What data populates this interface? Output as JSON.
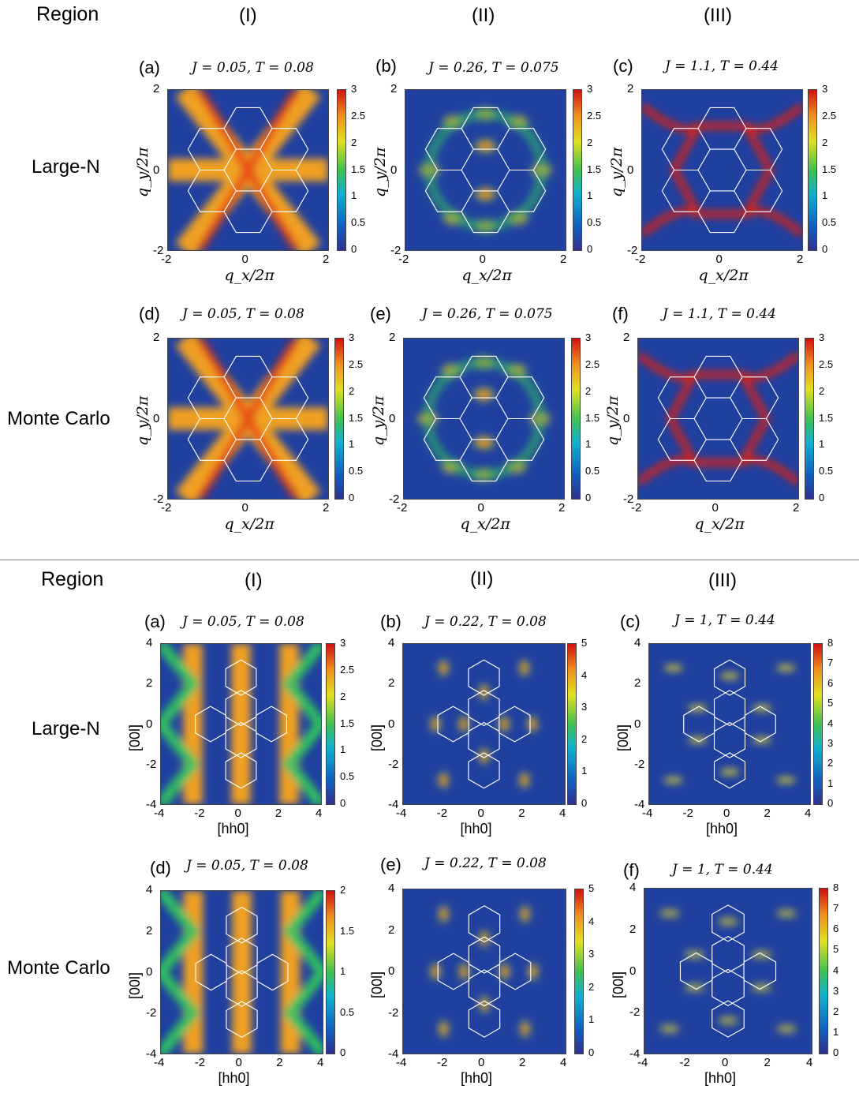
{
  "top": {
    "region_label": "Region",
    "columns": [
      "(I)",
      "(II)",
      "(III)"
    ],
    "rows": [
      "Large-N",
      "Monte Carlo"
    ],
    "panels": [
      {
        "label": "(a)",
        "title": "J = 0.05, T = 0.08",
        "cb_ticks": [
          "3",
          "2.5",
          "2",
          "1.5",
          "1",
          "0.5",
          "0"
        ]
      },
      {
        "label": "(b)",
        "title": "J = 0.26, T = 0.075",
        "cb_ticks": [
          "3",
          "2.5",
          "2",
          "1.5",
          "1",
          "0.5",
          "0"
        ]
      },
      {
        "label": "(c)",
        "title": "J = 1.1, T = 0.44",
        "cb_ticks": [
          "3",
          "2.5",
          "2",
          "1.5",
          "1",
          "0.5",
          "0"
        ]
      },
      {
        "label": "(d)",
        "title": "J = 0.05, T = 0.08",
        "cb_ticks": [
          "3",
          "2.5",
          "2",
          "1.5",
          "1",
          "0.5",
          "0"
        ]
      },
      {
        "label": "(e)",
        "title": "J = 0.26, T = 0.075",
        "cb_ticks": [
          "3",
          "2.5",
          "2",
          "1.5",
          "1",
          "0.5",
          "0"
        ]
      },
      {
        "label": "(f)",
        "title": "J = 1.1, T = 0.44",
        "cb_ticks": [
          "3",
          "2.5",
          "2",
          "1.5",
          "1",
          "0.5",
          "0"
        ]
      }
    ],
    "x_ticks": [
      "-2",
      "0",
      "2"
    ],
    "y_ticks": [
      "2",
      "0",
      "-2"
    ],
    "xlabel": "q_x/2π",
    "ylabel": "q_y/2π"
  },
  "bottom": {
    "region_label": "Region",
    "columns": [
      "(I)",
      "(II)",
      "(III)"
    ],
    "rows": [
      "Large-N",
      "Monte Carlo"
    ],
    "panels": [
      {
        "label": "(a)",
        "title": "J = 0.05, T = 0.08",
        "cb_ticks": [
          "3",
          "2.5",
          "2",
          "1.5",
          "1",
          "0.5",
          "0"
        ]
      },
      {
        "label": "(b)",
        "title": "J = 0.22, T = 0.08",
        "cb_ticks": [
          "5",
          "4",
          "3",
          "2",
          "1",
          "0"
        ]
      },
      {
        "label": "(c)",
        "title": "J = 1, T = 0.44",
        "cb_ticks": [
          "8",
          "7",
          "6",
          "5",
          "4",
          "3",
          "2",
          "1",
          "0"
        ]
      },
      {
        "label": "(d)",
        "title": "J = 0.05, T = 0.08",
        "cb_ticks": [
          "2",
          "1.5",
          "1",
          "0.5",
          "0"
        ]
      },
      {
        "label": "(e)",
        "title": "J = 0.22, T = 0.08",
        "cb_ticks": [
          "5",
          "4",
          "3",
          "2",
          "1",
          "0"
        ]
      },
      {
        "label": "(f)",
        "title": "J = 1, T = 0.44",
        "cb_ticks": [
          "8",
          "7",
          "6",
          "5",
          "4",
          "3",
          "2",
          "1",
          "0"
        ]
      }
    ],
    "x_ticks": [
      "-4",
      "-2",
      "0",
      "2",
      "4"
    ],
    "y_ticks": [
      "4",
      "2",
      "0",
      "-2",
      "-4"
    ],
    "xlabel": "[hh0]",
    "ylabel": "[00l]"
  },
  "colors": {
    "low": "#2040a0",
    "mid": "#30c060",
    "high": "#e02010",
    "overlay": "#ffffff"
  }
}
